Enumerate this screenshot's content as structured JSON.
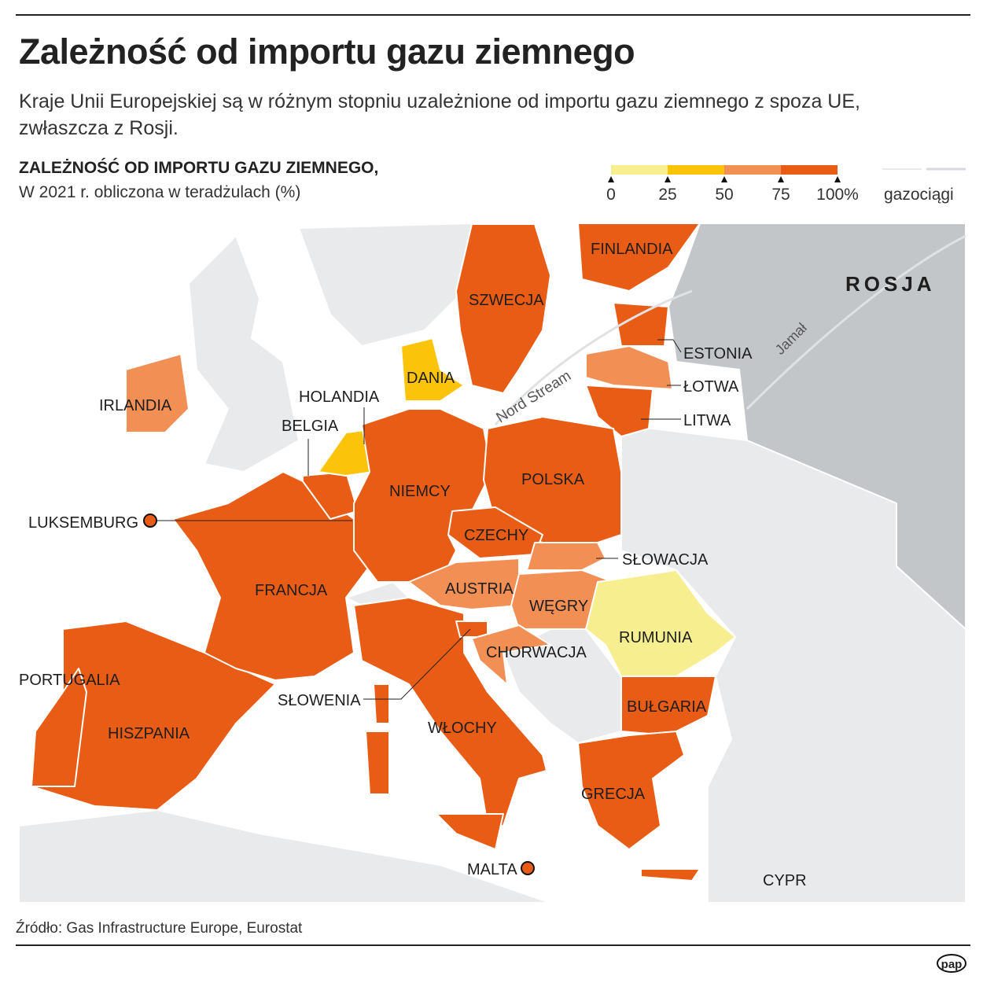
{
  "title": "Zależność od importu gazu ziemnego",
  "subtitle": "Kraje Unii Europejskiej są w różnym stopniu uzależnione od importu gazu ziemnego z spoza UE, zwłaszcza z Rosji.",
  "legend": {
    "heading": "ZALEŻNOŚĆ OD IMPORTU GAZU ZIEMNEGO,",
    "subheading": "W 2021 r. obliczona w teradżulach (%)",
    "ticks": [
      "0",
      "25",
      "50",
      "75",
      "100%"
    ],
    "bins": [
      {
        "range": "0-25",
        "color": "#f7ef8f"
      },
      {
        "range": "25-50",
        "color": "#fcc30b"
      },
      {
        "range": "50-75",
        "color": "#f28f55"
      },
      {
        "range": "75-100",
        "color": "#e95c15"
      }
    ],
    "pipelines_label": "gazociągi"
  },
  "countries": {
    "finlandia": {
      "label": "FINLANDIA",
      "bin": "75-100"
    },
    "szwecja": {
      "label": "SZWECJA",
      "bin": "75-100"
    },
    "estonia": {
      "label": "ESTONIA",
      "bin": "75-100"
    },
    "lotwa": {
      "label": "ŁOTWA",
      "bin": "50-75"
    },
    "litwa": {
      "label": "LITWA",
      "bin": "75-100"
    },
    "dania": {
      "label": "DANIA",
      "bin": "25-50"
    },
    "irlandia": {
      "label": "IRLANDIA",
      "bin": "50-75"
    },
    "holandia": {
      "label": "HOLANDIA",
      "bin": "25-50"
    },
    "belgia": {
      "label": "BELGIA",
      "bin": "75-100"
    },
    "luksemburg": {
      "label": "LUKSEMBURG",
      "bin": "75-100"
    },
    "niemcy": {
      "label": "NIEMCY",
      "bin": "75-100"
    },
    "polska": {
      "label": "POLSKA",
      "bin": "75-100"
    },
    "czechy": {
      "label": "CZECHY",
      "bin": "75-100"
    },
    "slowacja": {
      "label": "SŁOWACJA",
      "bin": "50-75"
    },
    "austria": {
      "label": "AUSTRIA",
      "bin": "50-75"
    },
    "wegry": {
      "label": "WĘGRY",
      "bin": "50-75"
    },
    "francja": {
      "label": "FRANCJA",
      "bin": "75-100"
    },
    "rumunia": {
      "label": "RUMUNIA",
      "bin": "0-25"
    },
    "chorwacja": {
      "label": "CHORWACJA",
      "bin": "50-75"
    },
    "portugalia": {
      "label": "PORTUGALIA",
      "bin": "75-100"
    },
    "hiszpania": {
      "label": "HISZPANIA",
      "bin": "75-100"
    },
    "slowenia": {
      "label": "SŁOWENIA",
      "bin": "75-100"
    },
    "bulgaria": {
      "label": "BUŁGARIA",
      "bin": "75-100"
    },
    "wlochy": {
      "label": "WŁOCHY",
      "bin": "75-100"
    },
    "grecja": {
      "label": "GRECJA",
      "bin": "75-100"
    },
    "malta": {
      "label": "MALTA",
      "bin": "75-100"
    },
    "cypr": {
      "label": "CYPR"
    }
  },
  "other_labels": {
    "rosja": "ROSJA",
    "nord_stream": "Nord Stream",
    "jamal": "Jamał"
  },
  "colors": {
    "non_eu_land": "#e8eaec",
    "russia": "#c3c6c8",
    "sea": "#ffffff"
  },
  "source": "Źródło: Gas Infrastructure Europe, Eurostat",
  "logo": "pap"
}
